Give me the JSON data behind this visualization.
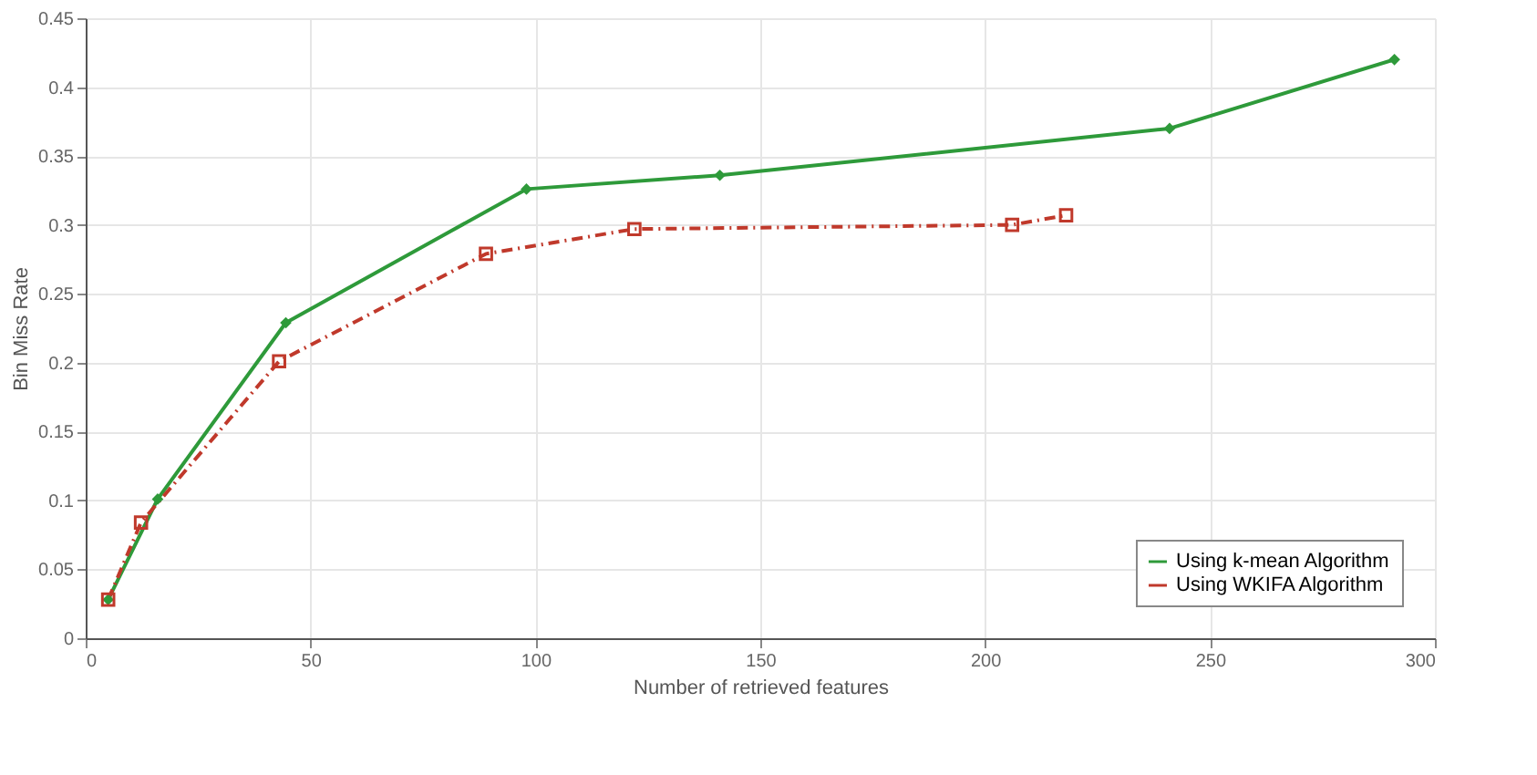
{
  "chart_data": {
    "type": "line",
    "xlabel": "Number of retrieved features",
    "ylabel": "Bin Miss Rate",
    "xlim": [
      0,
      300
    ],
    "xticks": [
      0,
      50,
      100,
      150,
      200,
      250,
      300
    ],
    "ylim": [
      0,
      0.45
    ],
    "yticks": [
      0,
      0.05,
      0.1,
      0.15,
      0.2,
      0.25,
      0.3,
      0.35,
      0.4,
      0.45
    ],
    "grid": true,
    "legend": "bottom right",
    "series": [
      {
        "name": "Using k-mean Algorithm",
        "color": "#2e9a3a",
        "marker": "diamond",
        "line_style": "solid",
        "x": [
          5,
          16,
          44.5,
          98,
          141,
          241,
          291
        ],
        "values": [
          0.028,
          0.101,
          0.229,
          0.326,
          0.336,
          0.37,
          0.42
        ]
      },
      {
        "name": "Using WKIFA Algorithm",
        "color": "#c0392b",
        "marker": "square",
        "line_style": "dashed",
        "x": [
          5,
          12.3,
          43,
          89,
          122,
          206,
          218
        ],
        "values": [
          0.028,
          0.084,
          0.201,
          0.279,
          0.297,
          0.3,
          0.307
        ]
      }
    ]
  }
}
